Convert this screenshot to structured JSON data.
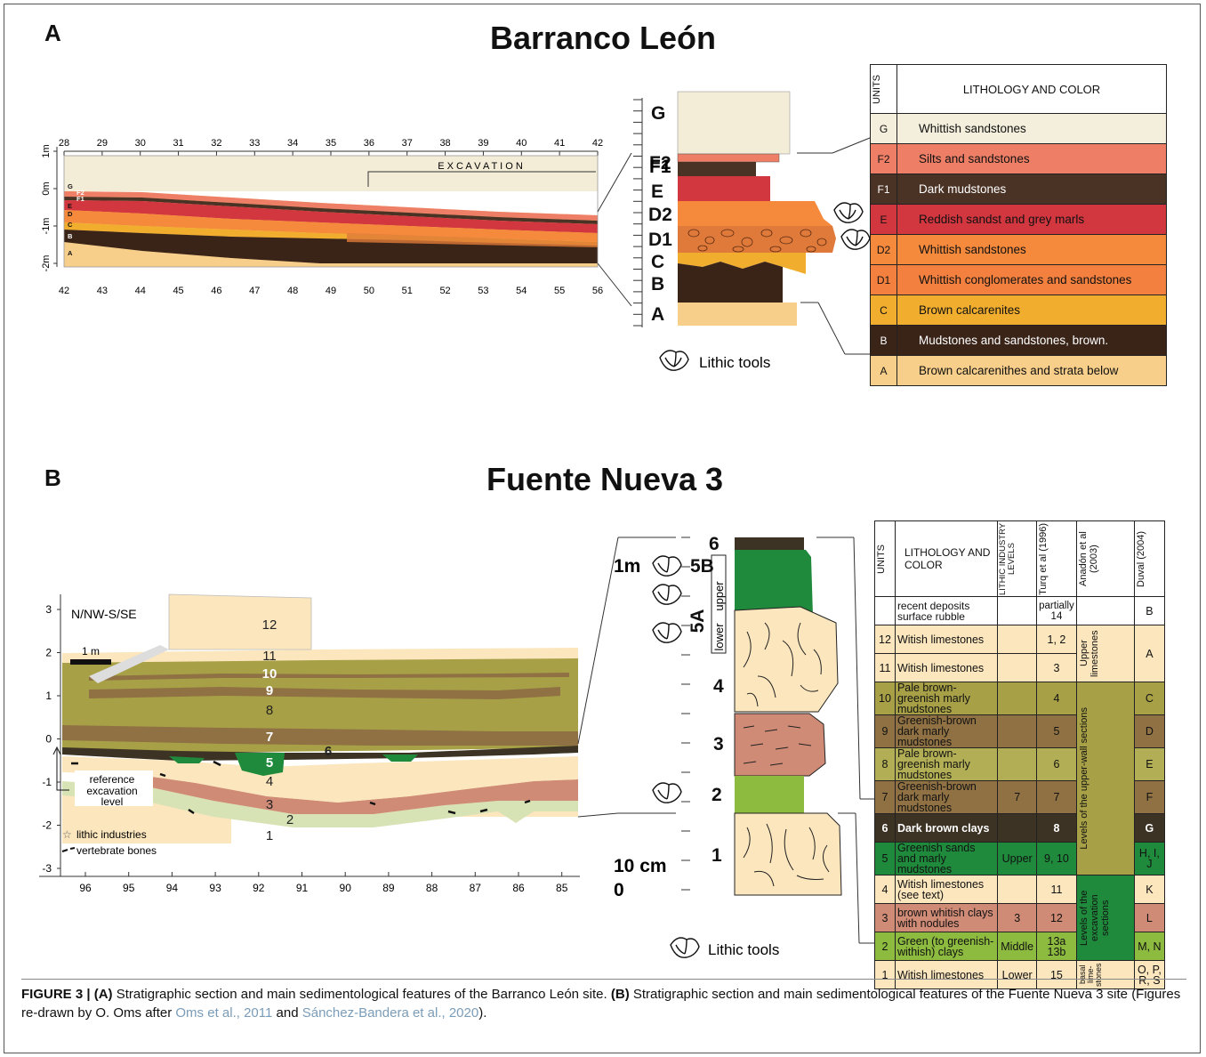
{
  "panel_a": {
    "letter": "A",
    "title": "Barranco León",
    "section": {
      "top_ticks": [
        "28",
        "29",
        "30",
        "31",
        "32",
        "33",
        "34",
        "35",
        "36",
        "37",
        "38",
        "39",
        "40",
        "41",
        "42"
      ],
      "bottom_ticks": [
        "42",
        "43",
        "44",
        "45",
        "46",
        "47",
        "48",
        "49",
        "50",
        "51",
        "52",
        "53",
        "54",
        "55",
        "56"
      ],
      "depth_labels": [
        "1m",
        "0m",
        "-1m",
        "-2m"
      ],
      "excavation_label": "E X C A V A T I O N",
      "layer_labels": [
        "G",
        "F2",
        "F1",
        "E",
        "D",
        "C",
        "B",
        "A"
      ]
    },
    "column_labels": [
      "G",
      "F2",
      "F1",
      "E",
      "D2",
      "D1",
      "C",
      "B",
      "A"
    ],
    "lithic_tools_label": "Lithic tools",
    "table": {
      "col_units": "UNITS",
      "col_lithology": "LITHOLOGY AND COLOR",
      "rows": [
        {
          "unit": "G",
          "lithology": "Whittish sandstones",
          "color": "#f4efdc"
        },
        {
          "unit": "F2",
          "lithology": "Silts and sandstones",
          "color": "#ee7f66"
        },
        {
          "unit": "F1",
          "lithology": "Dark mudstones",
          "color": "#4a3325"
        },
        {
          "unit": "E",
          "lithology": "Reddish sandst and grey marls",
          "color": "#d2363f"
        },
        {
          "unit": "D2",
          "lithology": "Whittish sandstones",
          "color": "#f5893c"
        },
        {
          "unit": "D1",
          "lithology": "Whittish conglomerates and sandstones",
          "color": "#f3803e"
        },
        {
          "unit": "C",
          "lithology": "Brown calcarenites",
          "color": "#f1ad2e"
        },
        {
          "unit": "B",
          "lithology": "Mudstones and sandstones, brown.",
          "color": "#3a2418"
        },
        {
          "unit": "A",
          "lithology": "Brown calcarenithes and strata below",
          "color": "#f7cf8a"
        }
      ]
    }
  },
  "panel_b": {
    "letter": "B",
    "title": "Fuente Nueva 3",
    "section": {
      "orientation": "N/NW-S/SE",
      "scale_label": "1 m",
      "y_ticks": [
        "3",
        "2",
        "1",
        "0",
        "-1",
        "-2",
        "-3"
      ],
      "x_ticks": [
        "96",
        "95",
        "94",
        "93",
        "92",
        "91",
        "90",
        "89",
        "88",
        "87",
        "86",
        "85"
      ],
      "layer_labels": [
        "12",
        "11",
        "10",
        "9",
        "8",
        "7",
        "6",
        "5",
        "4",
        "3",
        "2",
        "1"
      ],
      "reference_label": [
        "reference",
        "excavation",
        "level"
      ],
      "legend_lithic": "lithic industries",
      "legend_bones": "vertebrate bones"
    },
    "column": {
      "top_label": "1m",
      "bottom_label_1": "10 cm",
      "bottom_label_2": "0",
      "unit_labels": [
        "6",
        "5B",
        "5A",
        "4",
        "3",
        "2",
        "1"
      ],
      "sub_upper": "upper",
      "sub_lower": "lower"
    },
    "lithic_tools_label": "Lithic tools",
    "table": {
      "col_units": "UNITS",
      "col_lithology": "LITHOLOGY AND COLOR",
      "col_lithic": "LITHIC INDUSTRY LEVELS",
      "col_turq": "Turq et al (1996)",
      "col_anadon": "Anadón et al (2003)",
      "col_duval": "Duval (2004)",
      "recent_unit": "recent deposits",
      "recent_lith": "surface rubble",
      "recent_turq": "partially 14",
      "recent_duval": "B",
      "anadon_groups": [
        "Upper limestones",
        "Levels of the upper-wall sections",
        "Levels of the excavation sections",
        "basal lime-stones"
      ],
      "rows": [
        {
          "unit": "12",
          "lithology": "Witish limestones",
          "lithic": "",
          "turq": "1, 2",
          "duval": "A",
          "color": "#fbe6bd"
        },
        {
          "unit": "11",
          "lithology": "Witish limestones",
          "lithic": "",
          "turq": "3",
          "duval": "",
          "color": "#fbe6bd"
        },
        {
          "unit": "10",
          "lithology": "Pale brown-greenish marly mudstones",
          "lithic": "",
          "turq": "4",
          "duval": "C",
          "color": "#a7a047"
        },
        {
          "unit": "9",
          "lithology": "Greenish-brown dark marly mudstones",
          "lithic": "",
          "turq": "5",
          "duval": "D",
          "color": "#8f7143"
        },
        {
          "unit": "8",
          "lithology": "Pale brown-greenish marly mudstones",
          "lithic": "",
          "turq": "6",
          "duval": "E",
          "color": "#b2ae55"
        },
        {
          "unit": "7",
          "lithology": "Greenish-brown dark marly mudstones",
          "lithic": "7",
          "turq": "7",
          "duval": "F",
          "color": "#8f7143"
        },
        {
          "unit": "6",
          "lithology": "Dark brown clays",
          "lithic": "",
          "turq": "8",
          "duval": "G",
          "color": "#3c3324"
        },
        {
          "unit": "5",
          "lithology": "Greenish sands and marly mudstones",
          "lithic": "Upper",
          "turq": "9, 10",
          "duval": "H, I, J",
          "color": "#1f8a3c"
        },
        {
          "unit": "4",
          "lithology": "Witish limestones (see text)",
          "lithic": "",
          "turq": "11",
          "duval": "K",
          "color": "#fbe6bd"
        },
        {
          "unit": "3",
          "lithology": "brown whitish clays with nodules",
          "lithic": "3",
          "turq": "12",
          "duval": "L",
          "color": "#cf8b76"
        },
        {
          "unit": "2",
          "lithology": "Green (to greenish-withish) clays",
          "lithic": "Middle",
          "turq": "13a 13b",
          "duval": "M, N",
          "color": "#8dbb3f"
        },
        {
          "unit": "1",
          "lithology": "Witish limestones",
          "lithic": "Lower",
          "turq": "15",
          "duval": "O, P, R, S",
          "color": "#fbe6bd"
        }
      ]
    }
  },
  "caption": {
    "label": "FIGURE 3 | (A)",
    "text_a": " Stratigraphic section and main sedimentological features of the Barranco León site. ",
    "label_b": "(B)",
    "text_b": " Stratigraphic section and main sedimentological features of the Fuente Nueva 3 site (Figures re-drawn by O. Oms after ",
    "ref1": "Oms et al., 2011",
    "text_c": " and ",
    "ref2": "Sánchez-Bandera et al., 2020",
    "text_d": ")."
  }
}
